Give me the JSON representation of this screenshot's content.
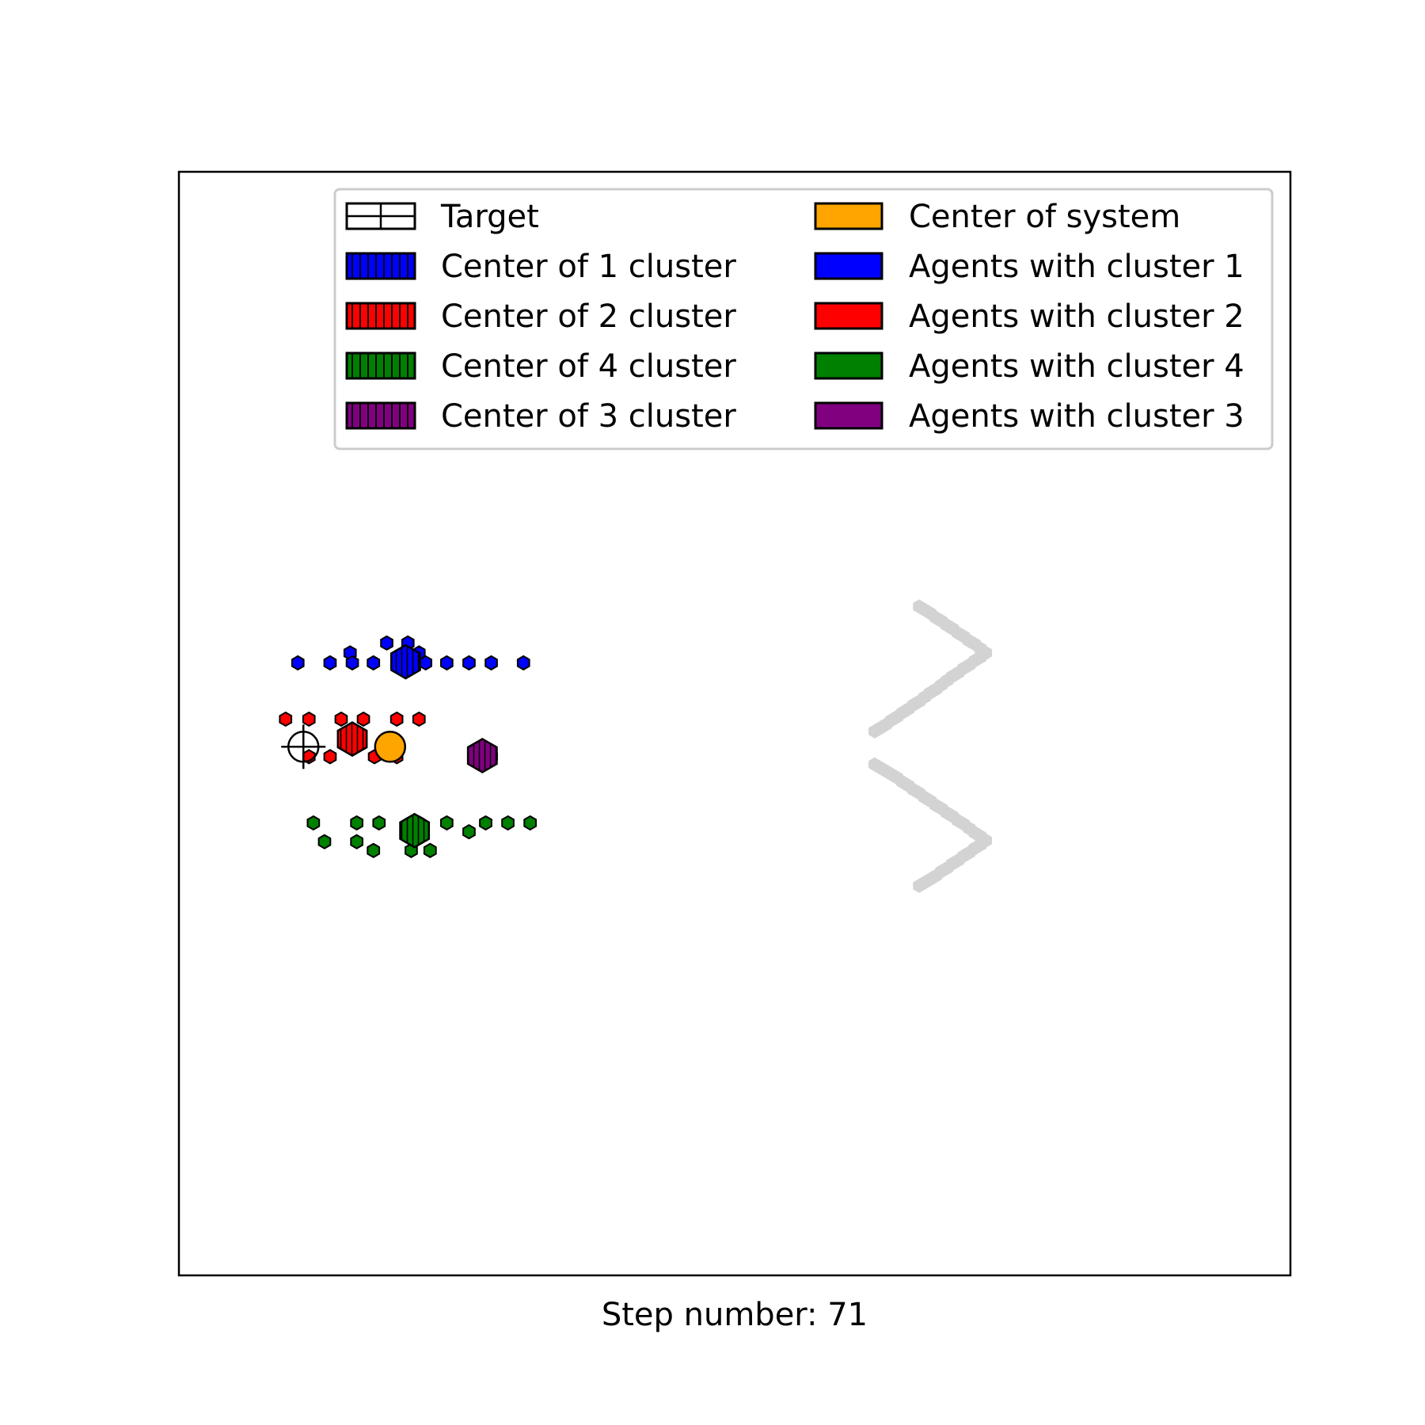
{
  "chart_data": {
    "type": "scatter",
    "xlim": [
      0,
      100
    ],
    "ylim": [
      0,
      100
    ],
    "grid": false,
    "xticks": false,
    "yticks": false,
    "legend_placement": "upper-right",
    "xlabel": "Step number: 71",
    "legend": [
      {
        "label": "Target",
        "kind": "target",
        "color": "#ffffff",
        "hatch": "+"
      },
      {
        "label": "Center of 1 cluster",
        "kind": "cluster-center",
        "color": "#0000ff",
        "hatch": "|"
      },
      {
        "label": "Center of 2 cluster",
        "kind": "cluster-center",
        "color": "#ff0000",
        "hatch": "|"
      },
      {
        "label": "Center of 4 cluster",
        "kind": "cluster-center",
        "color": "#008000",
        "hatch": "|"
      },
      {
        "label": "Center of 3 cluster",
        "kind": "cluster-center",
        "color": "#800080",
        "hatch": "|"
      },
      {
        "label": "Center of system",
        "kind": "system-center",
        "color": "#ffa500"
      },
      {
        "label": "Agents with cluster 1",
        "kind": "agents",
        "color": "#0000ff"
      },
      {
        "label": "Agents with cluster 2",
        "kind": "agents",
        "color": "#ff0000"
      },
      {
        "label": "Agents with cluster 4",
        "kind": "agents",
        "color": "#008000"
      },
      {
        "label": "Agents with cluster 3",
        "kind": "agents",
        "color": "#800080"
      }
    ],
    "target": {
      "x": 11.2,
      "y": 47.9
    },
    "system_center": {
      "x": 19.0,
      "y": 47.9
    },
    "cluster_centers": [
      {
        "cluster": 1,
        "color": "#0000ff",
        "x": 20.4,
        "y": 55.6
      },
      {
        "cluster": 2,
        "color": "#ff0000",
        "x": 15.6,
        "y": 48.6
      },
      {
        "cluster": 3,
        "color": "#800080",
        "x": 27.3,
        "y": 47.1
      },
      {
        "cluster": 4,
        "color": "#008000",
        "x": 21.2,
        "y": 40.3
      }
    ],
    "agents": [
      {
        "cluster": 1,
        "color": "#0000ff",
        "points": [
          [
            10.7,
            55.5
          ],
          [
            13.6,
            55.5
          ],
          [
            15.4,
            56.4
          ],
          [
            15.6,
            55.5
          ],
          [
            17.5,
            55.5
          ],
          [
            18.7,
            57.3
          ],
          [
            19.7,
            55.5
          ],
          [
            20.6,
            57.3
          ],
          [
            21.6,
            56.4
          ],
          [
            22.2,
            55.5
          ],
          [
            24.1,
            55.5
          ],
          [
            26.1,
            55.5
          ],
          [
            28.1,
            55.5
          ],
          [
            31.0,
            55.5
          ]
        ]
      },
      {
        "cluster": 2,
        "color": "#ff0000",
        "points": [
          [
            9.6,
            50.4
          ],
          [
            11.7,
            50.4
          ],
          [
            14.6,
            50.4
          ],
          [
            16.6,
            50.4
          ],
          [
            19.6,
            50.4
          ],
          [
            21.6,
            50.4
          ],
          [
            11.7,
            47.0
          ],
          [
            13.6,
            47.0
          ],
          [
            17.6,
            47.0
          ],
          [
            19.6,
            47.0
          ]
        ]
      },
      {
        "cluster": 3,
        "color": "#800080",
        "points": [
          [
            26.6,
            47.0
          ],
          [
            28.1,
            47.0
          ]
        ]
      },
      {
        "cluster": 4,
        "color": "#008000",
        "points": [
          [
            12.1,
            41.0
          ],
          [
            16.0,
            41.0
          ],
          [
            18.0,
            41.0
          ],
          [
            21.6,
            41.0
          ],
          [
            24.1,
            41.0
          ],
          [
            27.6,
            41.0
          ],
          [
            29.6,
            41.0
          ],
          [
            31.6,
            41.0
          ],
          [
            26.1,
            40.2
          ],
          [
            13.1,
            39.3
          ],
          [
            16.0,
            39.3
          ],
          [
            17.5,
            38.5
          ],
          [
            20.9,
            38.5
          ],
          [
            22.6,
            38.5
          ]
        ]
      }
    ],
    "obstacles": {
      "color": "#d3d3d3",
      "points": [
        [
          66.6,
          60.6
        ],
        [
          67.1,
          60.3
        ],
        [
          67.6,
          60.0
        ],
        [
          68.1,
          59.6
        ],
        [
          68.6,
          59.3
        ],
        [
          69.1,
          58.9
        ],
        [
          69.6,
          58.6
        ],
        [
          70.1,
          58.2
        ],
        [
          70.6,
          57.9
        ],
        [
          71.1,
          57.5
        ],
        [
          71.6,
          57.2
        ],
        [
          72.1,
          56.8
        ],
        [
          72.6,
          56.4
        ],
        [
          72.1,
          56.0
        ],
        [
          71.6,
          55.7
        ],
        [
          71.1,
          55.3
        ],
        [
          70.6,
          55.0
        ],
        [
          70.1,
          54.6
        ],
        [
          69.6,
          54.3
        ],
        [
          69.1,
          53.9
        ],
        [
          68.6,
          53.5
        ],
        [
          68.1,
          53.1
        ],
        [
          67.6,
          52.8
        ],
        [
          67.1,
          52.4
        ],
        [
          66.6,
          52.0
        ],
        [
          66.1,
          51.7
        ],
        [
          65.6,
          51.3
        ],
        [
          65.1,
          51.0
        ],
        [
          64.6,
          50.6
        ],
        [
          64.1,
          50.3
        ],
        [
          63.6,
          49.9
        ],
        [
          63.1,
          49.6
        ],
        [
          62.6,
          49.3
        ],
        [
          62.6,
          46.3
        ],
        [
          63.1,
          46.0
        ],
        [
          63.6,
          45.7
        ],
        [
          64.1,
          45.4
        ],
        [
          64.6,
          45.1
        ],
        [
          65.1,
          44.7
        ],
        [
          65.6,
          44.4
        ],
        [
          66.1,
          44.0
        ],
        [
          66.6,
          43.7
        ],
        [
          67.1,
          43.3
        ],
        [
          67.6,
          43.0
        ],
        [
          68.1,
          42.6
        ],
        [
          68.6,
          42.3
        ],
        [
          69.1,
          41.9
        ],
        [
          69.6,
          41.6
        ],
        [
          70.1,
          41.2
        ],
        [
          70.6,
          40.9
        ],
        [
          71.1,
          40.5
        ],
        [
          71.6,
          40.1
        ],
        [
          72.1,
          39.8
        ],
        [
          72.6,
          39.4
        ],
        [
          72.1,
          39.0
        ],
        [
          71.6,
          38.7
        ],
        [
          71.1,
          38.3
        ],
        [
          70.6,
          38.0
        ],
        [
          70.1,
          37.6
        ],
        [
          69.6,
          37.3
        ],
        [
          69.1,
          36.9
        ],
        [
          68.6,
          36.6
        ],
        [
          68.1,
          36.2
        ],
        [
          67.6,
          35.9
        ],
        [
          67.1,
          35.6
        ],
        [
          66.6,
          35.3
        ]
      ]
    }
  }
}
